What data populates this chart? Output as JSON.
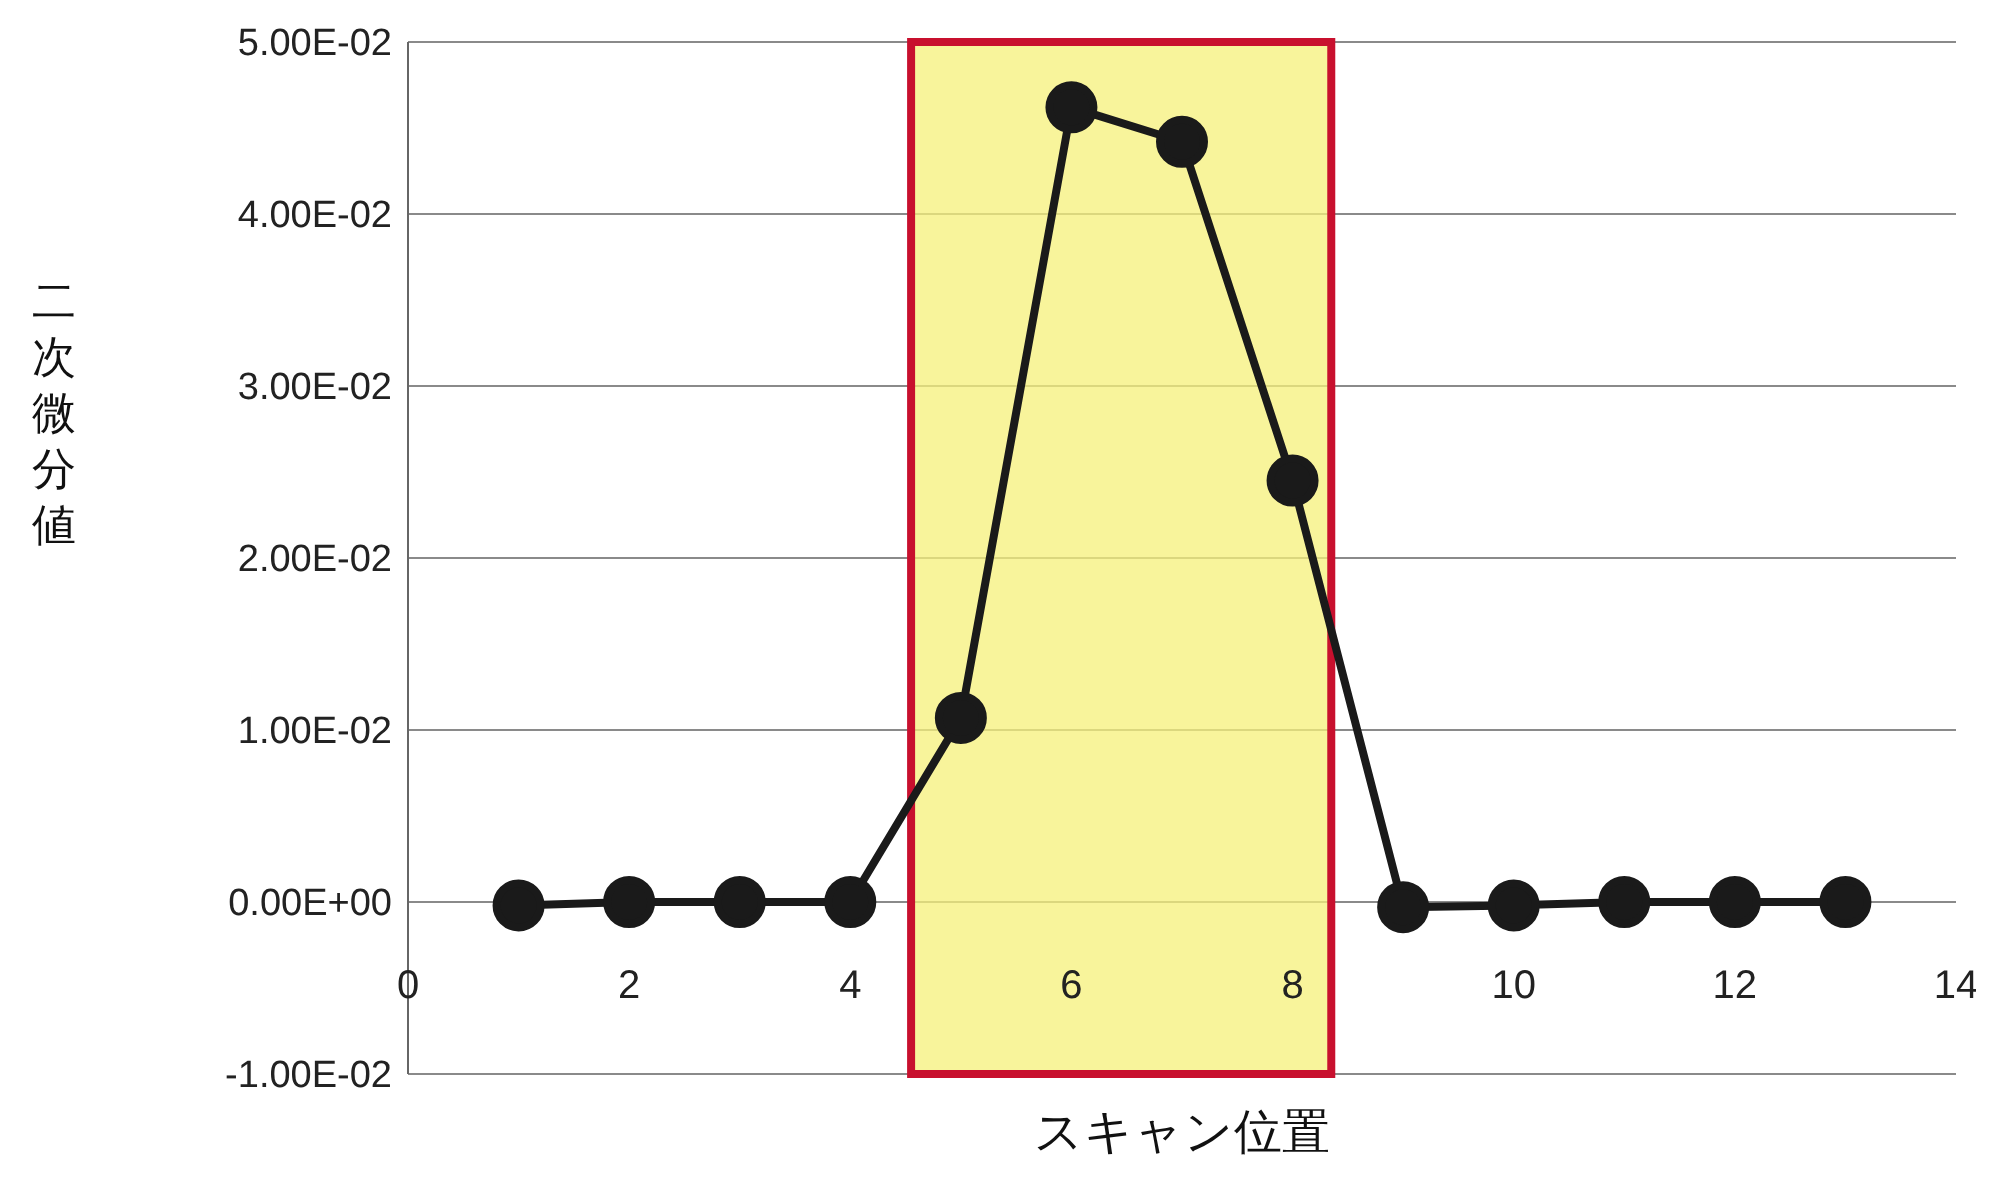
{
  "chart_data": {
    "type": "line",
    "xlabel": "スキャン位置",
    "ylabel": "二次微分値",
    "x": [
      1,
      2,
      3,
      4,
      5,
      6,
      7,
      8,
      9,
      10,
      11,
      12,
      13
    ],
    "series": [
      {
        "color": "#1a1a1a",
        "values": [
          -0.0002,
          0,
          0,
          0,
          0.0107,
          0.0462,
          0.0442,
          0.0245,
          -0.0003,
          -0.0002,
          0,
          0,
          0
        ]
      }
    ],
    "xlim": [
      0,
      14
    ],
    "xticks": [
      0,
      2,
      4,
      6,
      8,
      10,
      12,
      14
    ],
    "ylim": [
      -0.01,
      0.05
    ],
    "yticks": [
      {
        "value": -0.01,
        "label": "-1.00E-02"
      },
      {
        "value": 0,
        "label": "0.00E+00"
      },
      {
        "value": 0.01,
        "label": "1.00E-02"
      },
      {
        "value": 0.02,
        "label": "2.00E-02"
      },
      {
        "value": 0.03,
        "label": "3.00E-02"
      },
      {
        "value": 0.04,
        "label": "4.00E-02"
      },
      {
        "value": 0.05,
        "label": "5.00E-02"
      }
    ],
    "grid": "y",
    "marker": "circle",
    "line_style": "solid",
    "legend": false,
    "bands": [
      {
        "axis": "x",
        "from": 4.55,
        "to": 8.35,
        "color": "#f5f07a"
      }
    ]
  }
}
